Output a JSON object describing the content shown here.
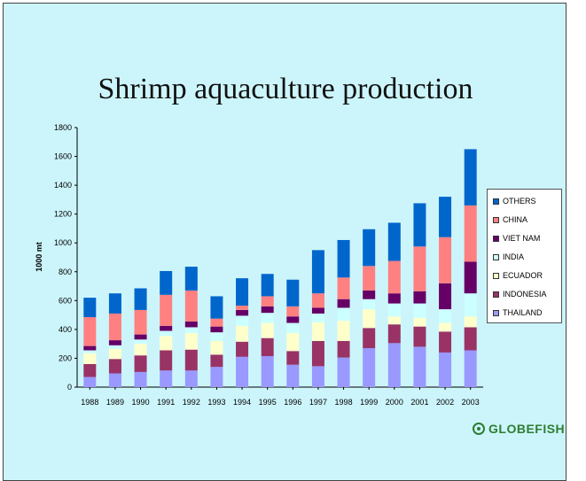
{
  "slide": {
    "title": "Shrimp aquaculture production",
    "logo_text": "GLOBEFISH"
  },
  "chart_data": {
    "type": "bar",
    "stacked": true,
    "title": "Shrimp aquaculture production",
    "xlabel": "",
    "ylabel": "1000 mt",
    "ylim": [
      0,
      1800
    ],
    "yticks": [
      0,
      200,
      400,
      600,
      800,
      1000,
      1200,
      1400,
      1600,
      1800
    ],
    "grid": false,
    "legend_position": "right",
    "categories": [
      "1988",
      "1989",
      "1990",
      "1991",
      "1992",
      "1993",
      "1994",
      "1995",
      "1996",
      "1997",
      "1998",
      "1999",
      "2000",
      "2001",
      "2002",
      "2003"
    ],
    "series": [
      {
        "name": "THAILAND",
        "color": "#9999ff",
        "values": [
          70,
          95,
          105,
          115,
          115,
          140,
          210,
          215,
          155,
          145,
          205,
          270,
          305,
          280,
          240,
          255
        ]
      },
      {
        "name": "INDONESIA",
        "color": "#993366",
        "values": [
          90,
          100,
          115,
          140,
          145,
          85,
          105,
          125,
          95,
          175,
          115,
          140,
          130,
          140,
          145,
          160
        ]
      },
      {
        "name": "ECUADOR",
        "color": "#ffffcc",
        "values": [
          75,
          70,
          80,
          100,
          115,
          95,
          110,
          105,
          125,
          130,
          140,
          130,
          55,
          60,
          60,
          75
        ]
      },
      {
        "name": "INDIA",
        "color": "#ccffff",
        "values": [
          20,
          25,
          30,
          35,
          40,
          60,
          70,
          70,
          70,
          60,
          90,
          70,
          90,
          100,
          95,
          160
        ]
      },
      {
        "name": "VIET NAM",
        "color": "#660066",
        "values": [
          30,
          35,
          35,
          35,
          40,
          40,
          40,
          45,
          45,
          40,
          60,
          60,
          70,
          85,
          180,
          220
        ]
      },
      {
        "name": "CHINA",
        "color": "#ff8080",
        "values": [
          200,
          185,
          170,
          215,
          215,
          55,
          30,
          70,
          70,
          100,
          150,
          170,
          225,
          310,
          320,
          390
        ]
      },
      {
        "name": "OTHERS",
        "color": "#0066cc",
        "values": [
          135,
          140,
          150,
          165,
          165,
          155,
          190,
          155,
          185,
          300,
          260,
          255,
          265,
          300,
          280,
          390
        ]
      }
    ]
  }
}
